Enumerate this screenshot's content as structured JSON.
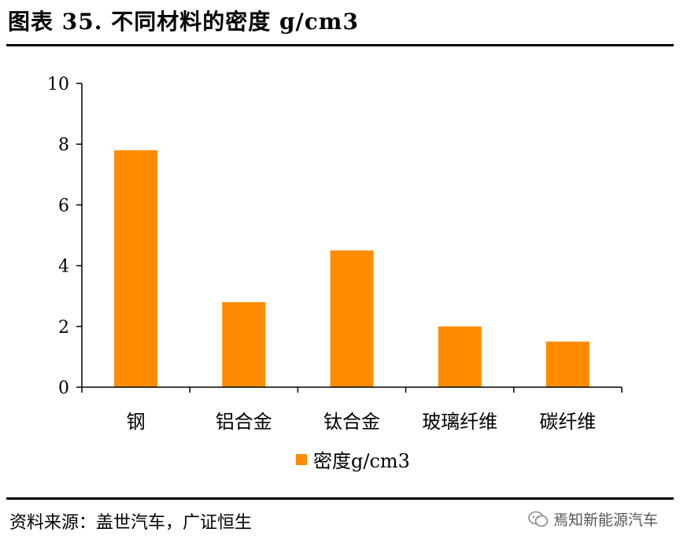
{
  "header": {
    "title": "图表 35. 不同材料的密度 g/cm3"
  },
  "footer": {
    "source": "资料来源：盖世汽车，广证恒生",
    "watermark": "焉知新能源汽车"
  },
  "colors": {
    "bar": "#FF8C00",
    "axis": "#000000"
  },
  "chart_data": {
    "type": "bar",
    "categories": [
      "钢",
      "铝合金",
      "钛合金",
      "玻璃纤维",
      "碳纤维"
    ],
    "series": [
      {
        "name": "密度g/cm3",
        "values": [
          7.8,
          2.8,
          4.5,
          2.0,
          1.5
        ]
      }
    ],
    "ylim": [
      0,
      10
    ],
    "yticks": [
      0,
      2,
      4,
      6,
      8,
      10
    ],
    "grid": false,
    "legend": "bottom"
  }
}
